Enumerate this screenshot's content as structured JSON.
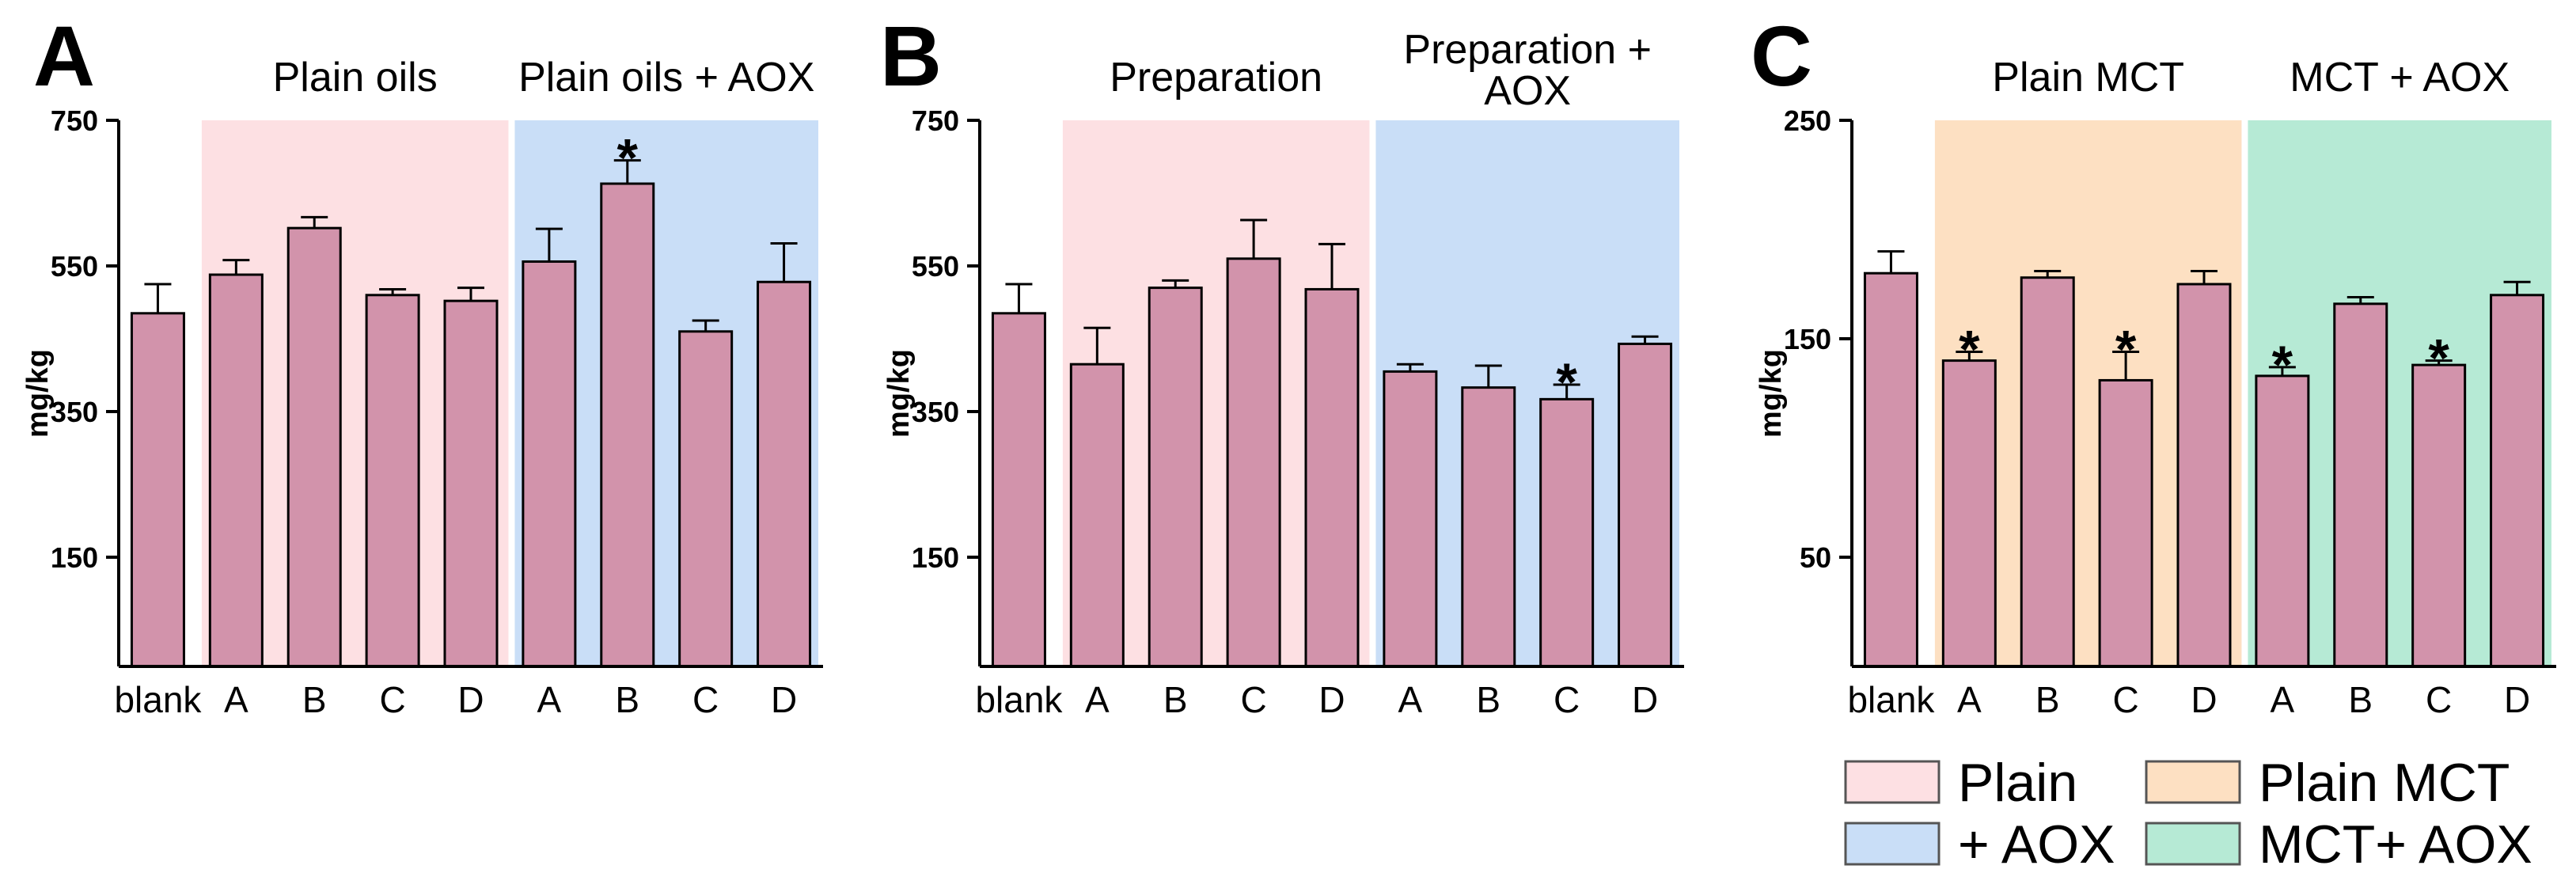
{
  "chart_data": [
    {
      "type": "bar",
      "panel": "A",
      "ylabel": "mg/kg",
      "ylim": [
        0,
        750
      ],
      "yticks": [
        150,
        350,
        550,
        750
      ],
      "categories": [
        "blank",
        "A",
        "B",
        "C",
        "D",
        "A",
        "B",
        "C",
        "D"
      ],
      "values": [
        485,
        538,
        602,
        510,
        502,
        556,
        663,
        460,
        528
      ],
      "errors": [
        40,
        20,
        15,
        8,
        18,
        45,
        32,
        15,
        53
      ],
      "significant": [
        false,
        false,
        false,
        false,
        false,
        false,
        true,
        false,
        false
      ],
      "groups": [
        {
          "label": "Plain oils",
          "start": 1,
          "end": 4,
          "color": "#fde0e3"
        },
        {
          "label": "Plain oils + AOX",
          "start": 5,
          "end": 8,
          "color": "#c9def7"
        }
      ]
    },
    {
      "type": "bar",
      "panel": "B",
      "ylabel": "mg/kg",
      "ylim": [
        0,
        750
      ],
      "yticks": [
        150,
        350,
        550,
        750
      ],
      "categories": [
        "blank",
        "A",
        "B",
        "C",
        "D",
        "A",
        "B",
        "C",
        "D"
      ],
      "values": [
        485,
        415,
        520,
        560,
        518,
        405,
        383,
        367,
        443
      ],
      "errors": [
        40,
        50,
        10,
        53,
        62,
        10,
        30,
        20,
        10
      ],
      "significant": [
        false,
        false,
        false,
        false,
        false,
        false,
        false,
        true,
        false
      ],
      "groups": [
        {
          "label": "Preparation",
          "start": 1,
          "end": 4,
          "color": "#fde0e3"
        },
        {
          "label": "Preparation +\nAOX",
          "start": 5,
          "end": 8,
          "color": "#c9def7"
        }
      ]
    },
    {
      "type": "bar",
      "panel": "C",
      "ylabel": "mg/kg",
      "ylim": [
        0,
        250
      ],
      "yticks": [
        50,
        150,
        250
      ],
      "categories": [
        "blank",
        "A",
        "B",
        "C",
        "D",
        "A",
        "B",
        "C",
        "D"
      ],
      "values": [
        180,
        140,
        178,
        131,
        175,
        133,
        166,
        138,
        170
      ],
      "errors": [
        10,
        4,
        3,
        13,
        6,
        4,
        3,
        2,
        6
      ],
      "significant": [
        false,
        true,
        false,
        true,
        false,
        true,
        false,
        true,
        false
      ],
      "groups": [
        {
          "label": "Plain MCT",
          "start": 1,
          "end": 4,
          "color": "#fde0c2"
        },
        {
          "label": "MCT + AOX",
          "start": 5,
          "end": 8,
          "color": "#b6ead5"
        }
      ]
    }
  ],
  "bar_color": "#d293ab",
  "significance_marker": "*",
  "legend": [
    {
      "label": "Plain",
      "color": "#fde0e3"
    },
    {
      "label": "Plain MCT",
      "color": "#fde0c2"
    },
    {
      "label": "+ AOX",
      "color": "#c9def7"
    },
    {
      "label": "MCT+ AOX",
      "color": "#b6ead5"
    }
  ]
}
